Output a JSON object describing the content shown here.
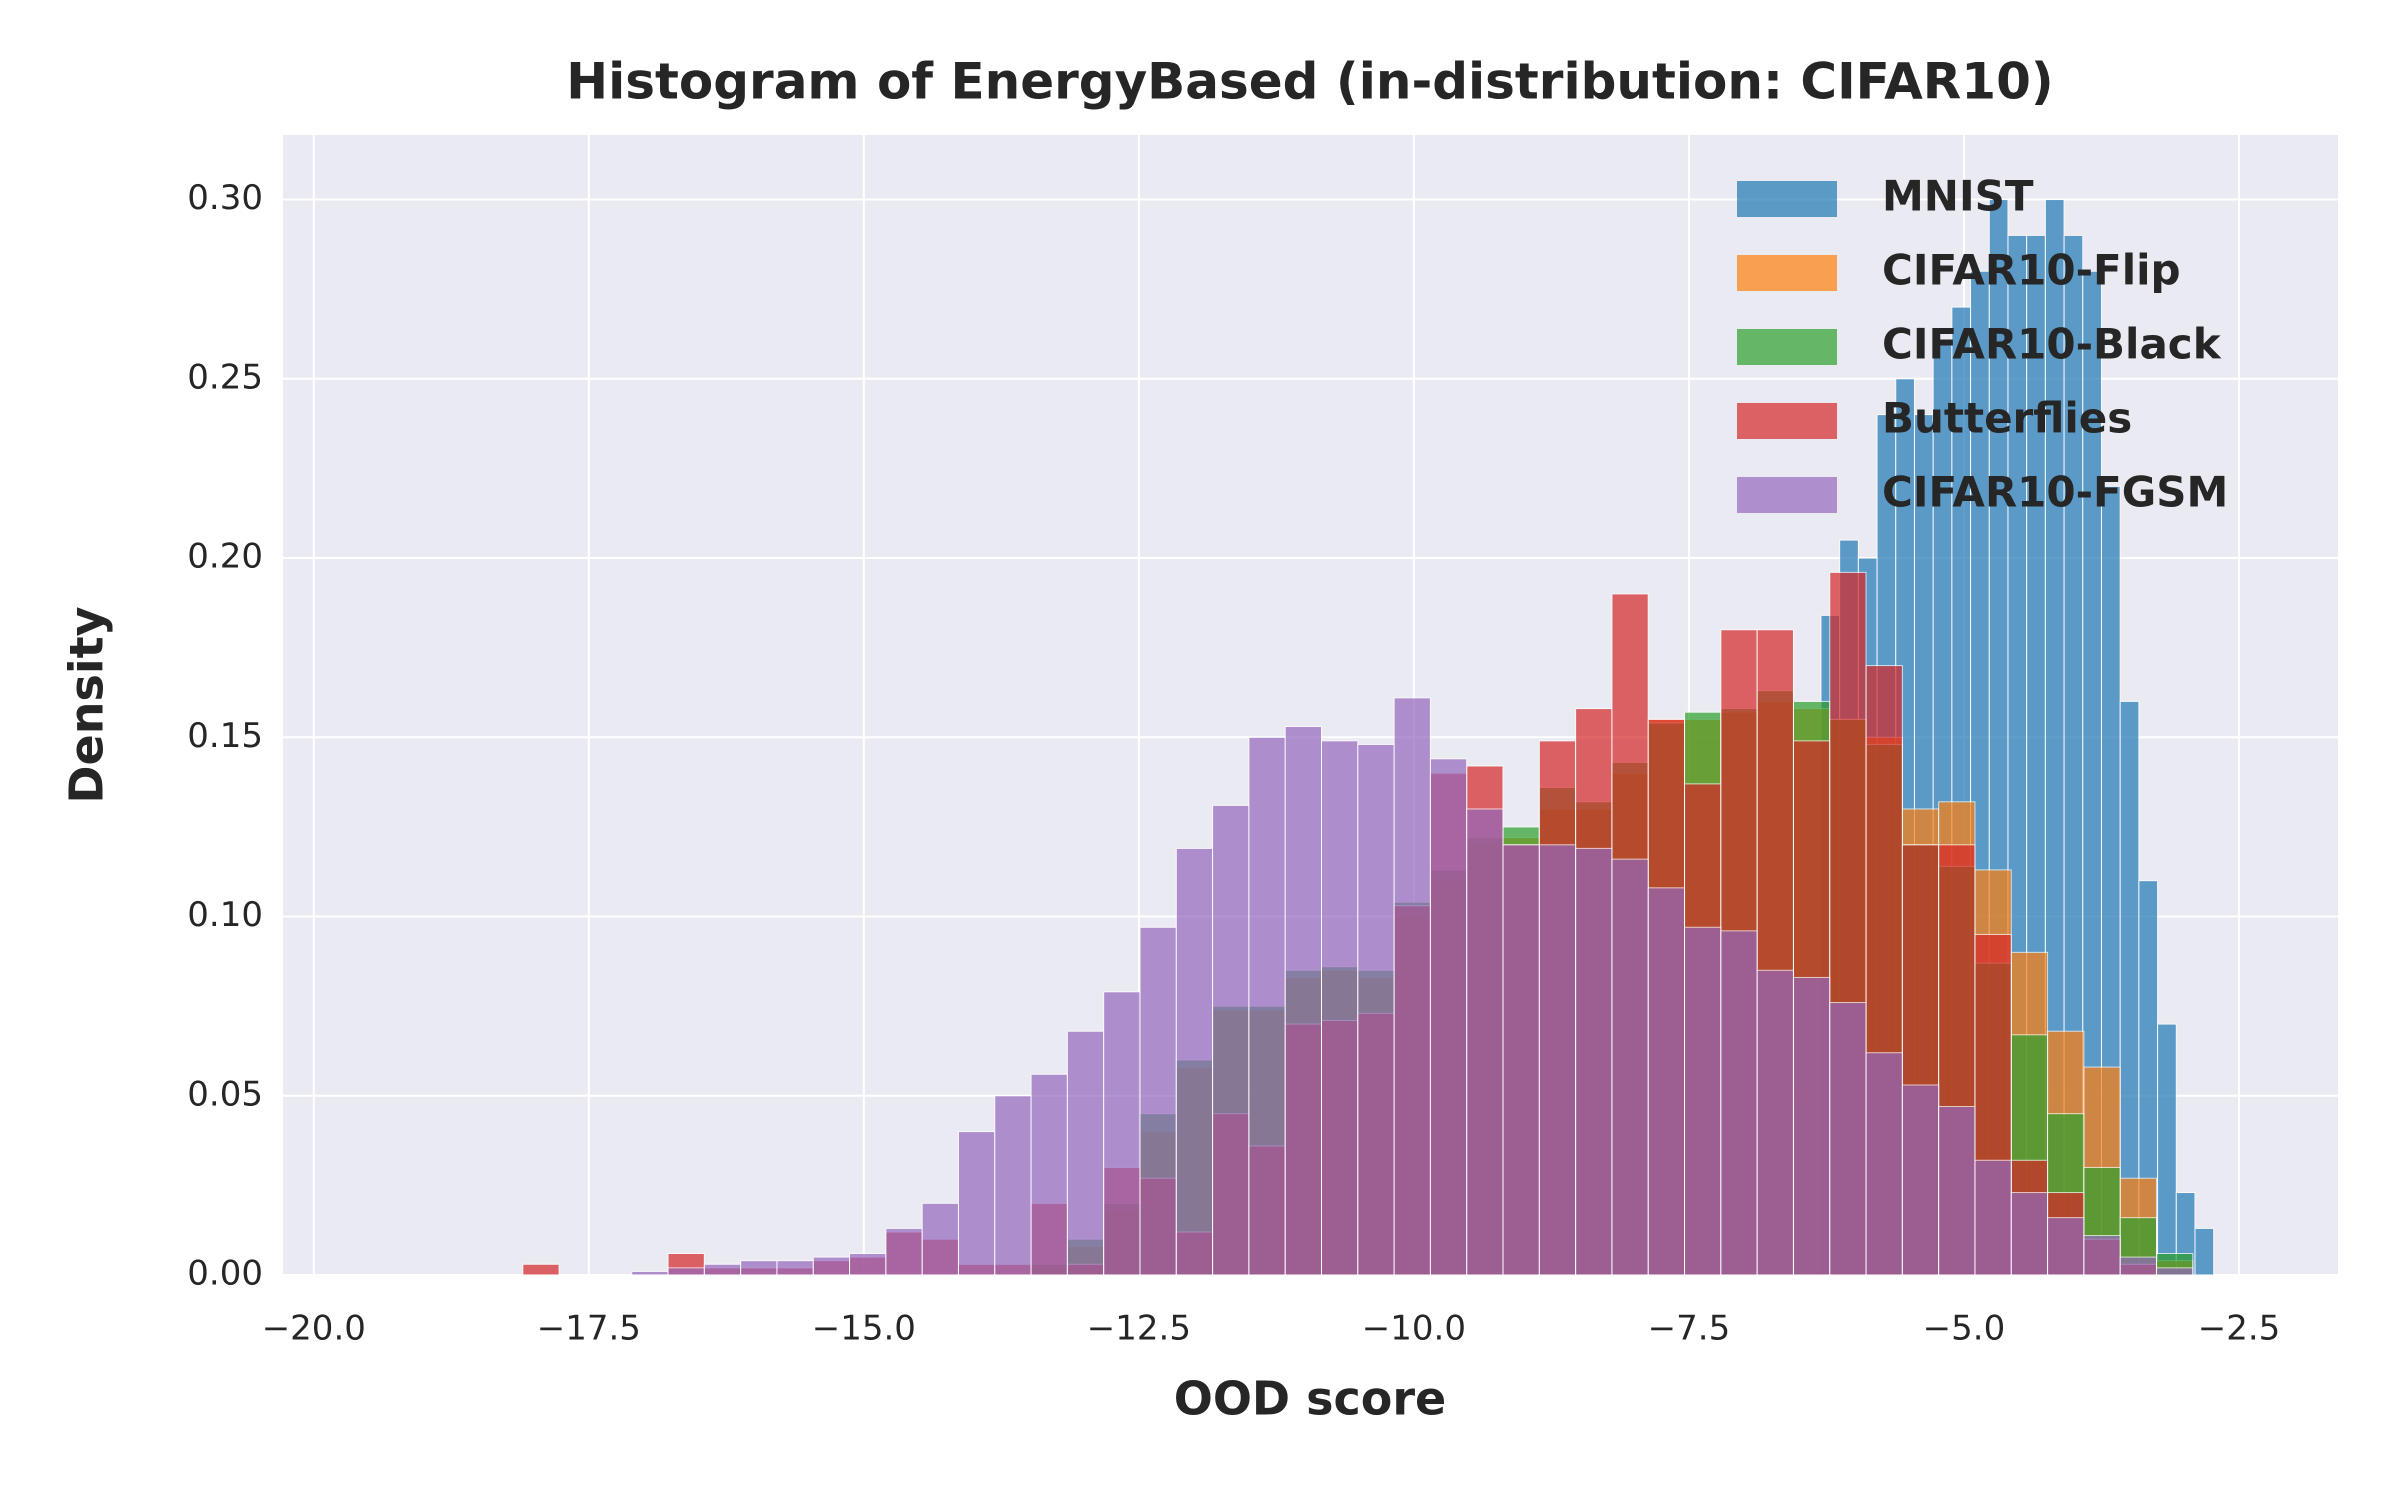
{
  "chart_data": {
    "type": "histogram",
    "title": "Histogram of EnergyBased (in-distribution: CIFAR10)",
    "xlabel": "OOD score",
    "ylabel": "Density",
    "xlim": [
      -20.28,
      -1.6
    ],
    "ylim": [
      0,
      0.318
    ],
    "xticks": [
      {
        "value": -20,
        "label": "−20.0"
      },
      {
        "value": -17.5,
        "label": "−17.5"
      },
      {
        "value": -15,
        "label": "−15.0"
      },
      {
        "value": -12.5,
        "label": "−12.5"
      },
      {
        "value": -10,
        "label": "−10.0"
      },
      {
        "value": -7.5,
        "label": "−7.5"
      },
      {
        "value": -5,
        "label": "−5.0"
      },
      {
        "value": -2.5,
        "label": "−2.5"
      }
    ],
    "yticks": [
      {
        "value": 0,
        "label": "0.00"
      },
      {
        "value": 0.05,
        "label": "0.05"
      },
      {
        "value": 0.1,
        "label": "0.10"
      },
      {
        "value": 0.15,
        "label": "0.15"
      },
      {
        "value": 0.2,
        "label": "0.20"
      },
      {
        "value": 0.25,
        "label": "0.25"
      },
      {
        "value": 0.3,
        "label": "0.30"
      }
    ],
    "grid": true,
    "legend": "upper right",
    "series": [
      {
        "name": "MNIST",
        "color": "#1f77b4",
        "bins": [
          -6.3,
          -6.13,
          -5.96,
          -5.79,
          -5.62,
          -5.45,
          -5.28,
          -5.11,
          -4.94,
          -4.77,
          -4.6,
          -4.43,
          -4.26,
          -4.09,
          -3.92,
          -3.75,
          -3.58,
          -3.41,
          -3.24,
          -3.07,
          -2.9,
          -2.73
        ],
        "values": [
          0.184,
          0.205,
          0.2,
          0.24,
          0.25,
          0.24,
          0.26,
          0.27,
          0.28,
          0.3,
          0.29,
          0.29,
          0.3,
          0.29,
          0.28,
          0.22,
          0.16,
          0.11,
          0.07,
          0.023,
          0.013
        ]
      },
      {
        "name": "CIFAR10-Flip",
        "color": "#ff7f0e",
        "bins": [
          -13.48,
          -13.15,
          -12.82,
          -12.49,
          -12.16,
          -11.83,
          -11.5,
          -11.17,
          -10.84,
          -10.51,
          -10.18,
          -9.85,
          -9.52,
          -9.19,
          -8.86,
          -8.53,
          -8.2,
          -7.87,
          -7.54,
          -7.21,
          -6.88,
          -6.55,
          -6.22,
          -5.89,
          -5.56,
          -5.23,
          -4.9,
          -4.57,
          -4.24,
          -3.91,
          -3.58,
          -3.25,
          -2.92
        ],
        "values": [
          0.002,
          0.008,
          0.018,
          0.04,
          0.058,
          0.074,
          0.074,
          0.083,
          0.085,
          0.083,
          0.1,
          0.11,
          0.12,
          0.122,
          0.13,
          0.13,
          0.14,
          0.155,
          0.155,
          0.157,
          0.16,
          0.158,
          0.155,
          0.15,
          0.13,
          0.132,
          0.113,
          0.09,
          0.068,
          0.058,
          0.027,
          0.004
        ]
      },
      {
        "name": "CIFAR10-Black",
        "color": "#2ca02c",
        "bins": [
          -13.48,
          -13.15,
          -12.82,
          -12.49,
          -12.16,
          -11.83,
          -11.5,
          -11.17,
          -10.84,
          -10.51,
          -10.18,
          -9.85,
          -9.52,
          -9.19,
          -8.86,
          -8.53,
          -8.2,
          -7.87,
          -7.54,
          -7.21,
          -6.88,
          -6.55,
          -6.22,
          -5.89,
          -5.56,
          -5.23,
          -4.9,
          -4.57,
          -4.24,
          -3.91,
          -3.58,
          -3.25,
          -2.92
        ],
        "values": [
          0.003,
          0.01,
          0.02,
          0.045,
          0.06,
          0.075,
          0.075,
          0.085,
          0.086,
          0.085,
          0.104,
          0.113,
          0.122,
          0.125,
          0.136,
          0.132,
          0.143,
          0.154,
          0.157,
          0.158,
          0.163,
          0.16,
          0.155,
          0.148,
          0.12,
          0.114,
          0.087,
          0.067,
          0.045,
          0.03,
          0.016,
          0.006
        ]
      },
      {
        "name": "Butterflies",
        "color": "#d62728",
        "bins": [
          -18.1,
          -17.77,
          -17.44,
          -17.11,
          -16.78,
          -16.45,
          -16.12,
          -15.79,
          -15.46,
          -15.13,
          -14.8,
          -14.47,
          -14.14,
          -13.81,
          -13.48,
          -13.15,
          -12.82,
          -12.49,
          -12.16,
          -11.83,
          -11.5,
          -11.17,
          -10.84,
          -10.51,
          -10.18,
          -9.85,
          -9.52,
          -9.19,
          -8.86,
          -8.53,
          -8.2,
          -7.87,
          -7.54,
          -7.21,
          -6.88,
          -6.55,
          -6.22,
          -5.89,
          -5.56,
          -5.23,
          -4.9,
          -4.57,
          -4.24,
          -3.91,
          -3.58,
          -3.25
        ],
        "values": [
          0.003,
          0,
          0,
          0,
          0.006,
          0.002,
          0.002,
          0.002,
          0.004,
          0.005,
          0.012,
          0.01,
          0.003,
          0.003,
          0.02,
          0.003,
          0.03,
          0.027,
          0.012,
          0.045,
          0.036,
          0.07,
          0.071,
          0.073,
          0.103,
          0.14,
          0.142,
          0.12,
          0.149,
          0.158,
          0.19,
          0.155,
          0.137,
          0.18,
          0.18,
          0.149,
          0.196,
          0.17,
          0.12,
          0.12,
          0.095,
          0.032,
          0.023,
          0.01,
          0.003
        ]
      },
      {
        "name": "CIFAR10-FGSM",
        "color": "#9467bd",
        "bins": [
          -17.11,
          -16.78,
          -16.45,
          -16.12,
          -15.79,
          -15.46,
          -15.13,
          -14.8,
          -14.47,
          -14.14,
          -13.81,
          -13.48,
          -13.15,
          -12.82,
          -12.49,
          -12.16,
          -11.83,
          -11.5,
          -11.17,
          -10.84,
          -10.51,
          -10.18,
          -9.85,
          -9.52,
          -9.19,
          -8.86,
          -8.53,
          -8.2,
          -7.87,
          -7.54,
          -7.21,
          -6.88,
          -6.55,
          -6.22,
          -5.89,
          -5.56,
          -5.23,
          -4.9,
          -4.57,
          -4.24,
          -3.91,
          -3.58,
          -3.25,
          -2.92
        ],
        "values": [
          0.001,
          0.002,
          0.003,
          0.004,
          0.004,
          0.005,
          0.006,
          0.013,
          0.02,
          0.04,
          0.05,
          0.056,
          0.068,
          0.079,
          0.097,
          0.119,
          0.131,
          0.15,
          0.153,
          0.149,
          0.148,
          0.161,
          0.144,
          0.13,
          0.12,
          0.12,
          0.119,
          0.116,
          0.108,
          0.097,
          0.096,
          0.085,
          0.083,
          0.076,
          0.062,
          0.053,
          0.047,
          0.032,
          0.023,
          0.016,
          0.011,
          0.005,
          0.002
        ]
      }
    ]
  }
}
